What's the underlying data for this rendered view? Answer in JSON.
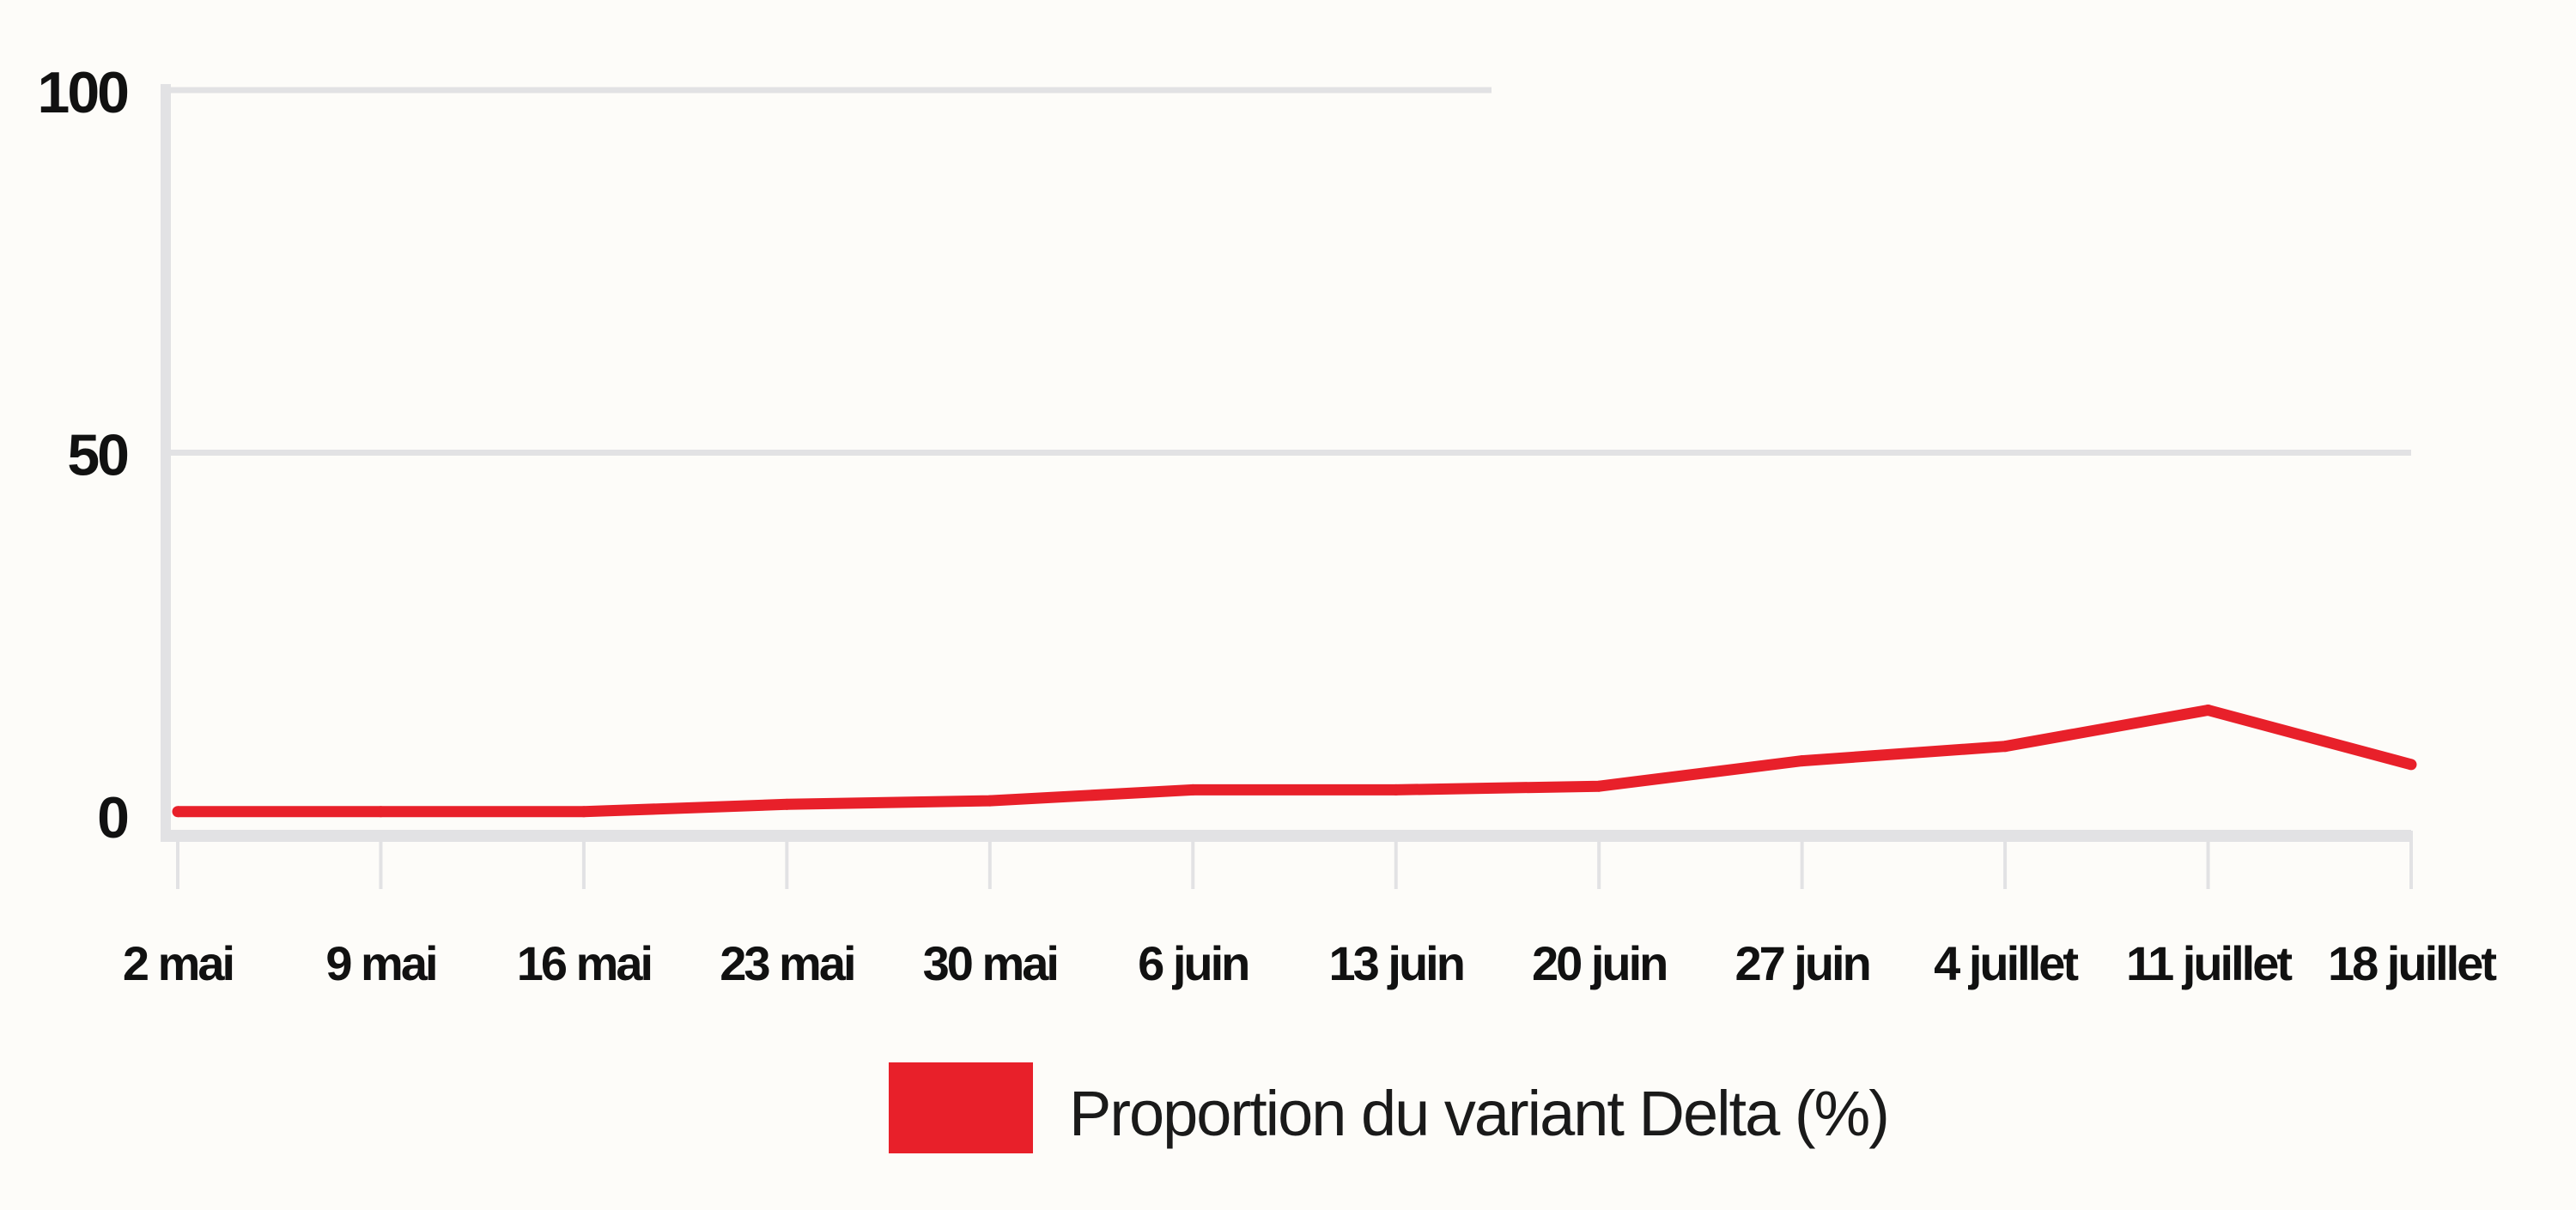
{
  "chart_data": {
    "type": "line",
    "title": "",
    "xlabel": "",
    "ylabel": "",
    "categories": [
      "2 mai",
      "9 mai",
      "16 mai",
      "23 mai",
      "30 mai",
      "6 juin",
      "13 juin",
      "20 juin",
      "27 juin",
      "4 juillet",
      "11 juillet",
      "18 juillet"
    ],
    "y_ticks": [
      "0",
      "50",
      "100"
    ],
    "ylim": [
      0,
      100
    ],
    "grid": true,
    "series": [
      {
        "name": "Proportion du variant Delta (%)",
        "color": "#e8202a",
        "values": [
          0.5,
          0.5,
          0.5,
          1.5,
          2,
          3.5,
          3.5,
          4,
          7.5,
          9.5,
          14.5,
          7
        ]
      }
    ],
    "legend_position": "bottom-center"
  }
}
